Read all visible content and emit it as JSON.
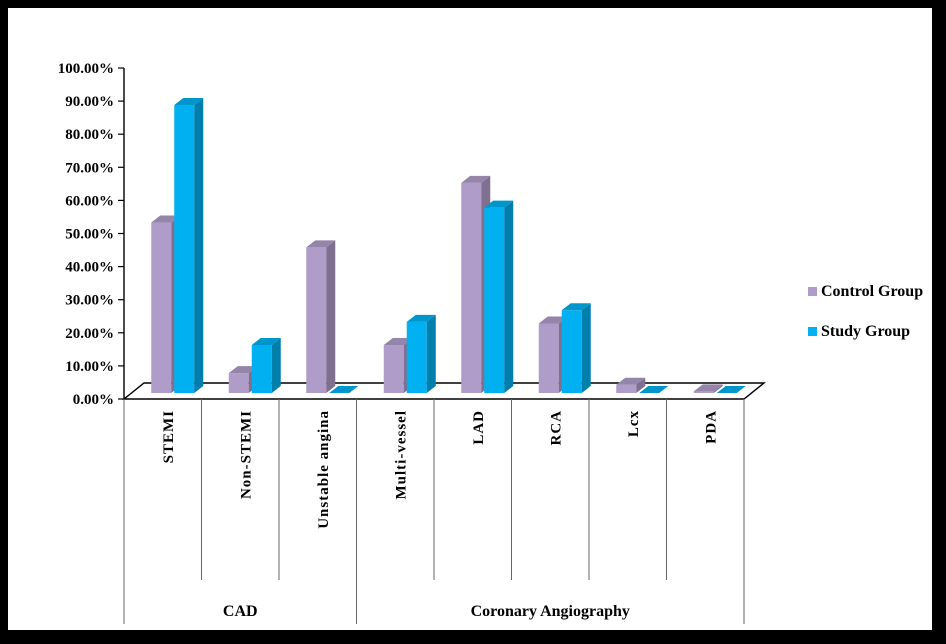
{
  "chart_data": {
    "type": "bar",
    "title": "",
    "xlabel": "",
    "ylabel": "",
    "ylim": [
      0,
      100
    ],
    "y_tick_labels": [
      "0.00%",
      "10.00%",
      "20.00%",
      "30.00%",
      "40.00%",
      "50.00%",
      "60.00%",
      "70.00%",
      "80.00%",
      "90.00%",
      "100.00%"
    ],
    "categories": [
      "STEMI",
      "Non-STEMI",
      "Unstable angina",
      "Multi-vessel",
      "LAD",
      "RCA",
      "Lcx",
      "PDA"
    ],
    "groups": [
      {
        "label": "CAD",
        "categories": [
          "STEMI",
          "Non-STEMI",
          "Unstable angina"
        ]
      },
      {
        "label": "Coronary Angiography",
        "categories": [
          "Multi-vessel",
          "LAD",
          "RCA",
          "Lcx",
          "PDA"
        ]
      }
    ],
    "series": [
      {
        "name": "Control Group",
        "color": "#B09CC8",
        "values": [
          51.5,
          6.0,
          44.0,
          14.5,
          63.5,
          21.0,
          2.5,
          0.5
        ]
      },
      {
        "name": "Study Group",
        "color": "#00B0F0",
        "values": [
          87.0,
          14.5,
          0.0,
          21.5,
          56.0,
          25.0,
          0.0,
          0.0
        ]
      }
    ],
    "legend_position": "right",
    "grid": false
  }
}
